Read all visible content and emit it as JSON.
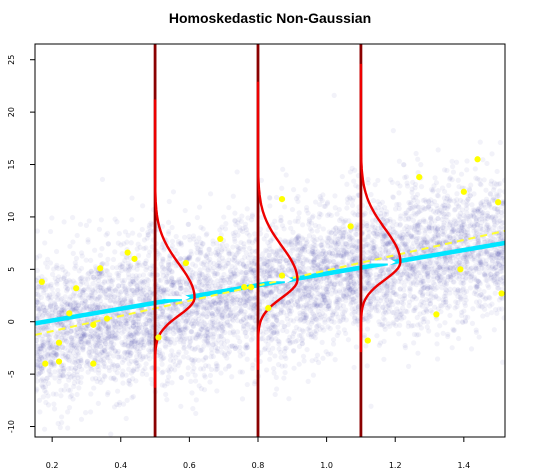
{
  "chart_data": {
    "type": "scatter",
    "title": "Homoskedastic Non-Gaussian",
    "xlabel": "",
    "ylabel": "",
    "xlim": [
      0.15,
      1.52
    ],
    "ylim": [
      -11,
      26.5
    ],
    "x_ticks": [
      0.2,
      0.4,
      0.6,
      0.8,
      1.0,
      1.2,
      1.4
    ],
    "x_tick_labels": [
      "0.2",
      "0.4",
      "0.6",
      "0.8",
      "1.0",
      "1.2",
      "1.4"
    ],
    "y_ticks": [
      -10,
      -5,
      0,
      5,
      10,
      15,
      20,
      25
    ],
    "y_tick_labels": [
      "-10",
      "-5",
      "0",
      "5",
      "10",
      "15",
      "20",
      "25"
    ],
    "grid": false,
    "legend": "none",
    "background_cloud": {
      "description_color": "#1a1a8c",
      "center_line": {
        "intercept": -2.6,
        "slope": 6.6
      },
      "spread_sd": 3.2,
      "count": 6000
    },
    "sample_points": {
      "color": "#ffff00",
      "x": [
        0.17,
        0.18,
        0.22,
        0.22,
        0.25,
        0.27,
        0.32,
        0.32,
        0.34,
        0.36,
        0.42,
        0.44,
        0.51,
        0.59,
        0.69,
        0.76,
        0.78,
        0.83,
        0.87,
        0.87,
        1.07,
        1.12,
        1.27,
        1.32,
        1.39,
        1.4,
        1.44,
        1.5,
        1.51
      ],
      "y": [
        3.8,
        -4.0,
        -3.8,
        -2.0,
        0.8,
        3.2,
        -0.3,
        -4.0,
        5.1,
        0.3,
        6.6,
        6.0,
        -1.5,
        5.6,
        7.9,
        3.3,
        3.3,
        1.3,
        11.7,
        4.4,
        9.1,
        -1.8,
        13.8,
        0.7,
        5.0,
        12.4,
        15.5,
        11.4,
        2.7
      ]
    },
    "fit_lines": [
      {
        "style": "solid",
        "color": "#00e5ff",
        "intercept": -1.0,
        "slope": 5.6
      },
      {
        "style": "dashed",
        "color": "#ffff33",
        "intercept": -2.35,
        "slope": 7.25
      }
    ],
    "conditional_densities": {
      "line_color": "#8b0000",
      "curve_color": "#ee0000",
      "x_positions": [
        0.5,
        0.8,
        1.1
      ],
      "means": [
        2.3,
        4.0,
        5.7
      ],
      "y_range_below": -8.6,
      "y_range_above": 19.0
    },
    "arrows": {
      "color": "#ffffff",
      "segments": [
        {
          "x0": 0.53,
          "y0": 2.3,
          "x1": 0.59,
          "y1": 2.3
        },
        {
          "x0": 0.83,
          "y0": 4.0,
          "x1": 0.89,
          "y1": 4.0
        },
        {
          "x0": 1.13,
          "y0": 5.7,
          "x1": 1.19,
          "y1": 5.7
        }
      ]
    }
  }
}
